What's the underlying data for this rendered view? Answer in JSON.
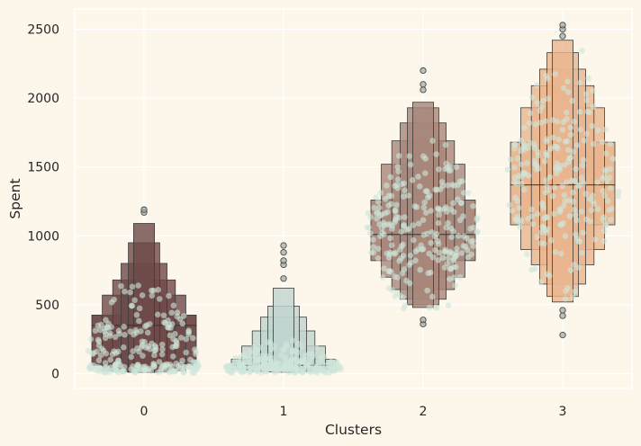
{
  "chart_data": {
    "type": "boxen",
    "title": "",
    "xlabel": "Clusters",
    "ylabel": "Spent",
    "categories": [
      "0",
      "1",
      "2",
      "3"
    ],
    "ylim": [
      -100,
      2620
    ],
    "yticks": [
      0,
      500,
      1000,
      1500,
      2000,
      2500
    ],
    "grid": true,
    "series": [
      {
        "cluster": "0",
        "box_color": "#6e4a48",
        "median": 350,
        "boxes": [
          [
            60,
            425
          ],
          [
            20,
            570
          ],
          [
            15,
            680
          ],
          [
            12,
            800
          ],
          [
            10,
            950
          ],
          [
            8,
            1090
          ]
        ],
        "outliers": [
          1170,
          1190
        ],
        "swarm": {
          "min": 5,
          "max": 1200,
          "peak": 150
        }
      },
      {
        "cluster": "1",
        "box_color": "#c0d4cf",
        "median": 60,
        "boxes": [
          [
            35,
            105
          ],
          [
            25,
            200
          ],
          [
            18,
            310
          ],
          [
            15,
            410
          ],
          [
            12,
            490
          ],
          [
            10,
            620
          ]
        ],
        "outliers": [
          690,
          790,
          820,
          880,
          930
        ],
        "swarm": {
          "min": 5,
          "max": 480,
          "peak": 40
        }
      },
      {
        "cluster": "2",
        "box_color": "#a8877a",
        "median": 1010,
        "boxes": [
          [
            820,
            1260
          ],
          [
            700,
            1520
          ],
          [
            610,
            1690
          ],
          [
            540,
            1820
          ],
          [
            500,
            1930
          ],
          [
            480,
            1970
          ]
        ],
        "outliers": [
          360,
          390,
          2060,
          2100,
          2200
        ],
        "swarm": {
          "min": 470,
          "max": 1950,
          "peak": 1050
        }
      },
      {
        "cluster": "3",
        "box_color": "#e8b58e",
        "median": 1370,
        "boxes": [
          [
            1080,
            1680
          ],
          [
            900,
            1930
          ],
          [
            790,
            2090
          ],
          [
            650,
            2210
          ],
          [
            560,
            2330
          ],
          [
            520,
            2420
          ]
        ],
        "outliers": [
          280,
          420,
          460,
          2450,
          2500,
          2530
        ],
        "swarm": {
          "min": 500,
          "max": 2450,
          "peak": 1400
        }
      }
    ]
  }
}
